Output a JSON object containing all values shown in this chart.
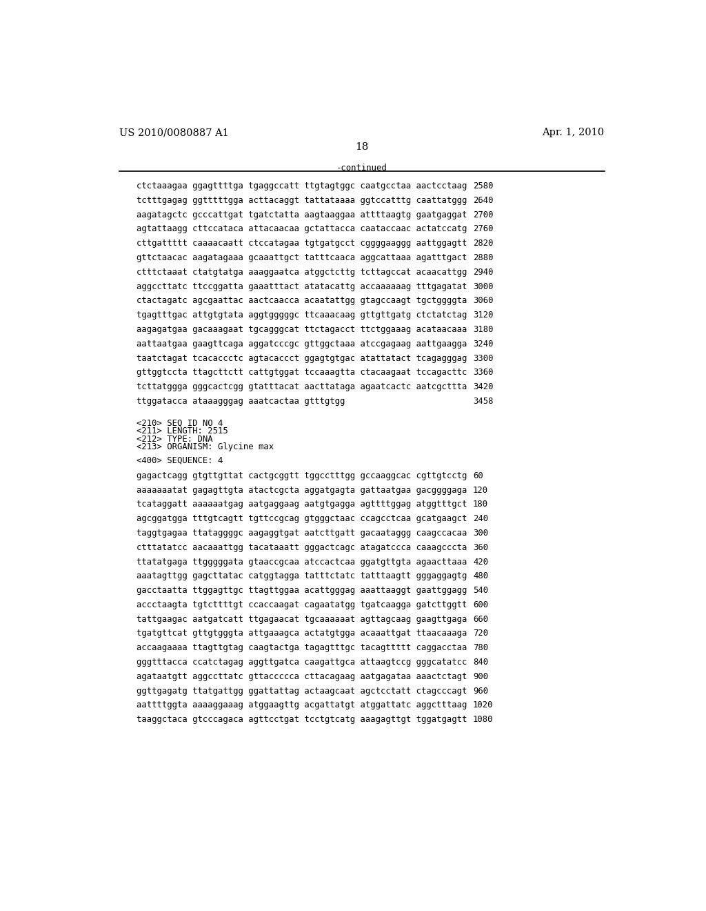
{
  "header_left": "US 2010/0080887 A1",
  "header_right": "Apr. 1, 2010",
  "page_number": "18",
  "continued_text": "-continued",
  "background_color": "#ffffff",
  "text_color": "#000000",
  "font_size_header": 10.5,
  "font_size_page": 11,
  "font_size_mono": 8.8,
  "sequence_lines_top": [
    [
      "ctctaaagaa ggagttttga tgaggccatt ttgtagtggc caatgcctaa aactcctaag",
      "2580"
    ],
    [
      "tctttgagag ggtttttgga acttacaggt tattataaaa ggtccatttg caattatggg",
      "2640"
    ],
    [
      "aagatagctc gcccattgat tgatctatta aagtaaggaa attttaagtg gaatgaggat",
      "2700"
    ],
    [
      "agtattaagg cttccataca attacaacaa gctattacca caataccaac actatccatg",
      "2760"
    ],
    [
      "cttgattttt caaaacaatt ctccatagaa tgtgatgcct cggggaaggg aattggagtt",
      "2820"
    ],
    [
      "gttctaacac aagatagaaa gcaaattgct tatttcaaca aggcattaaa agatttgact",
      "2880"
    ],
    [
      "ctttctaaat ctatgtatga aaaggaatca atggctcttg tcttagccat acaacattgg",
      "2940"
    ],
    [
      "aggccttatc ttccggatta gaaatttact atatacattg accaaaaaag tttgagatat",
      "3000"
    ],
    [
      "ctactagatc agcgaattac aactcaacca acaatattgg gtagccaagt tgctggggta",
      "3060"
    ],
    [
      "tgagtttgac attgtgtata aggtgggggc ttcaaacaag gttgttgatg ctctatctag",
      "3120"
    ],
    [
      "aagagatgaa gacaaagaat tgcagggcat ttctagacct ttctggaaag acataacaaa",
      "3180"
    ],
    [
      "aattaatgaa gaagttcaga aggatcccgc gttggctaaa atccgagaag aattgaagga",
      "3240"
    ],
    [
      "taatctagat tcacaccctc agtacaccct ggagtgtgac atattatact tcagagggag",
      "3300"
    ],
    [
      "gttggtccta ttagcttctt cattgtggat tccaaagtta ctacaagaat tccagacttc",
      "3360"
    ],
    [
      "tcttatggga gggcactcgg gtatttacat aacttataga agaatcactc aatcgcttta",
      "3420"
    ],
    [
      "ttggatacca ataaagggag aaatcactaa gtttgtgg",
      "3458"
    ]
  ],
  "metadata_lines": [
    "<210> SEQ ID NO 4",
    "<211> LENGTH: 2515",
    "<212> TYPE: DNA",
    "<213> ORGANISM: Glycine max"
  ],
  "sequence_label": "<400> SEQUENCE: 4",
  "sequence_lines_bottom": [
    [
      "gagactcagg gtgttgttat cactgcggtt tggcctttgg gccaaggcac cgttgtcctg",
      "60"
    ],
    [
      "aaaaaaatat gagagttgta atactcgcta aggatgagta gattaatgaa gacggggaga",
      "120"
    ],
    [
      "tcataggatt aaaaaatgag aatgaggaag aatgtgagga agttttggag atggtttgct",
      "180"
    ],
    [
      "agcggatgga tttgtcagtt tgttccgcag gtgggctaac ccagcctcaa gcatgaagct",
      "240"
    ],
    [
      "taggtgagaa ttataggggc aagaggtgat aatcttgatt gacaataggg caagccacaa",
      "300"
    ],
    [
      "ctttatatcc aacaaattgg tacataaatt gggactcagc atagatccca caaagcccta",
      "360"
    ],
    [
      "ttatatgaga ttgggggata gtaaccgcaa atccactcaa ggatgttgta agaacttaaa",
      "420"
    ],
    [
      "aaatagttgg gagcttatac catggtagga tatttctatc tatttaagtt gggaggagtg",
      "480"
    ],
    [
      "gacctaatta ttggagttgc ttagttggaa acattgggag aaattaaggt gaattggagg",
      "540"
    ],
    [
      "accctaagta tgtcttttgt ccaccaagat cagaatatgg tgatcaagga gatcttggtt",
      "600"
    ],
    [
      "tattgaagac aatgatcatt ttgagaacat tgcaaaaaat agttagcaag gaagttgaga",
      "660"
    ],
    [
      "tgatgttcat gttgtgggta attgaaagca actatgtgga acaaattgat ttaacaaaga",
      "720"
    ],
    [
      "accaagaaaa ttagttgtag caagtactga tagagtttgc tacagttttt caggacctaa",
      "780"
    ],
    [
      "gggtttacca ccatctagag aggttgatca caagattgca attaagtccg gggcatatcc",
      "840"
    ],
    [
      "agataatgtt aggccttatc gttaccccca cttacagaag aatgagataa aaactctagt",
      "900"
    ],
    [
      "ggttgagatg ttatgattgg ggattattag actaagcaat agctcctatt ctagcccagt",
      "960"
    ],
    [
      "aattttggta aaaaggaaag atggaagttg acgattatgt atggattatc aggctttaag",
      "1020"
    ],
    [
      "taaggctaca gtcccagaca agttcctgat tcctgtcatg aaagagttgt tggatgagtt",
      "1080"
    ]
  ]
}
